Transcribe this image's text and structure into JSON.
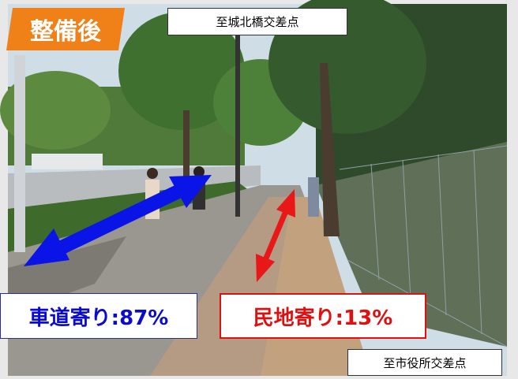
{
  "badge": "整備後",
  "top_label": "至城北橋交差点",
  "roadside_share": "車道寄り:87%",
  "private_side_share": "民地寄り:13%",
  "bottom_label": "至市役所交差点"
}
